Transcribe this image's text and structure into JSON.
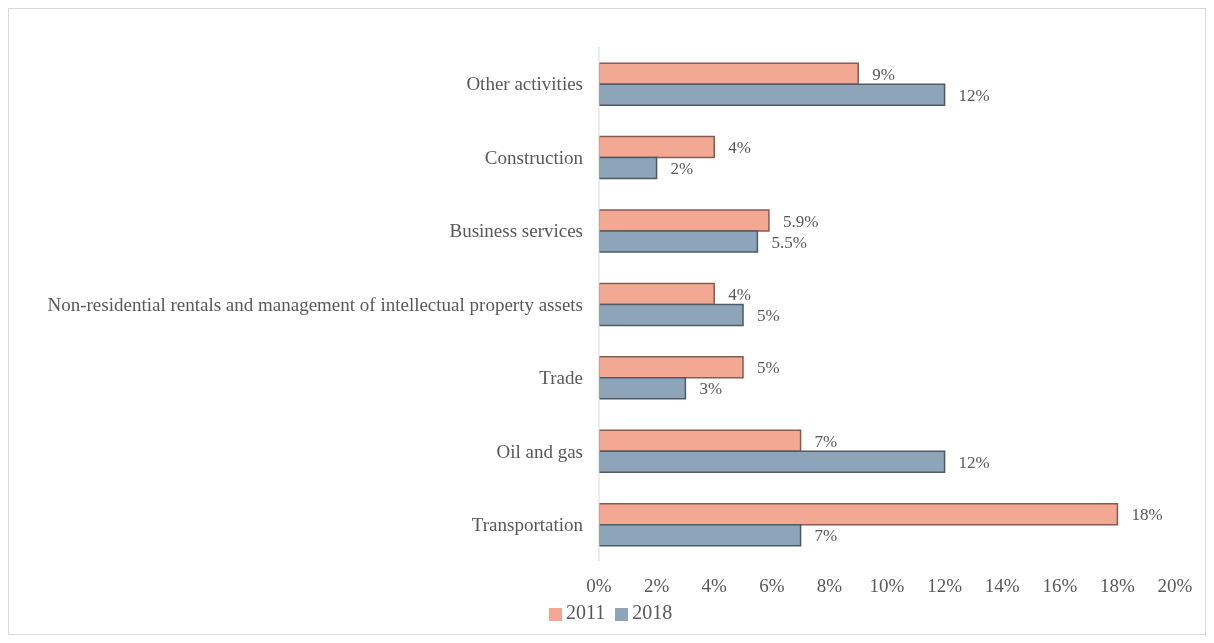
{
  "chart_data": {
    "type": "bar",
    "orientation": "horizontal",
    "categories": [
      "Other activities",
      "Construction",
      "Business services",
      "Non-residential rentals and management of intellectual property assets",
      "Trade",
      "Oil and gas",
      "Transportation"
    ],
    "series": [
      {
        "name": "2011",
        "color": "#f2a893",
        "values": [
          9,
          4,
          5.9,
          4,
          5,
          7,
          18
        ],
        "value_labels": [
          "9%",
          "4%",
          "5.9%",
          "4%",
          "5%",
          "7%",
          "18%"
        ]
      },
      {
        "name": "2018",
        "color": "#8da4b9",
        "values": [
          12,
          2,
          5.5,
          5,
          3,
          12,
          7
        ],
        "value_labels": [
          "12%",
          "2%",
          "5.5%",
          "5%",
          "3%",
          "12%",
          "7%"
        ]
      }
    ],
    "xlim": [
      0,
      20
    ],
    "xticks": [
      {
        "value": 0,
        "label": "0%"
      },
      {
        "value": 2,
        "label": "2%"
      },
      {
        "value": 4,
        "label": "4%"
      },
      {
        "value": 6,
        "label": "6%"
      },
      {
        "value": 8,
        "label": "8%"
      },
      {
        "value": 10,
        "label": "10%"
      },
      {
        "value": 12,
        "label": "12%"
      },
      {
        "value": 14,
        "label": "14%"
      },
      {
        "value": 16,
        "label": "16%"
      },
      {
        "value": 18,
        "label": "18%"
      },
      {
        "value": 20,
        "label": "20%"
      }
    ],
    "grid": false,
    "legend": "bottom"
  }
}
